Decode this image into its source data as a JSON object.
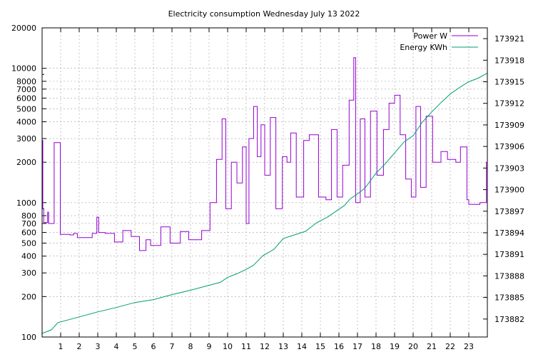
{
  "chart_data": {
    "type": "line",
    "title": "Electricity consumption Wednesday July 13 2022",
    "x": {
      "label": "",
      "range": [
        0,
        24
      ],
      "ticks": [
        1,
        2,
        3,
        4,
        5,
        6,
        7,
        8,
        9,
        10,
        11,
        12,
        13,
        14,
        15,
        16,
        17,
        18,
        19,
        20,
        21,
        22,
        23
      ]
    },
    "y_left": {
      "label": "",
      "scale": "log",
      "range": [
        100,
        20000
      ],
      "ticks": [
        100,
        200,
        300,
        400,
        500,
        600,
        700,
        800,
        1000,
        2000,
        3000,
        4000,
        5000,
        6000,
        7000,
        8000,
        10000,
        20000
      ]
    },
    "y_right": {
      "label": "",
      "scale": "linear",
      "range": [
        173879.5,
        173922.5
      ],
      "ticks": [
        173882,
        173885,
        173888,
        173891,
        173894,
        173897,
        173900,
        173903,
        173906,
        173909,
        173912,
        173915,
        173918,
        173921
      ]
    },
    "grid": true,
    "legend": "top-right",
    "series": [
      {
        "name": "Power W",
        "axis": "left",
        "color": "#9400d3",
        "style": "steps",
        "points": [
          [
            0.0,
            2900
          ],
          [
            0.04,
            900
          ],
          [
            0.09,
            710
          ],
          [
            0.3,
            850
          ],
          [
            0.35,
            700
          ],
          [
            0.65,
            2800
          ],
          [
            0.95,
            2800
          ],
          [
            0.98,
            580
          ],
          [
            1.5,
            575
          ],
          [
            1.7,
            590
          ],
          [
            1.9,
            550
          ],
          [
            2.7,
            590
          ],
          [
            2.95,
            780
          ],
          [
            3.05,
            600
          ],
          [
            3.4,
            590
          ],
          [
            3.9,
            510
          ],
          [
            4.35,
            620
          ],
          [
            4.8,
            560
          ],
          [
            5.25,
            440
          ],
          [
            5.6,
            530
          ],
          [
            5.85,
            480
          ],
          [
            6.4,
            660
          ],
          [
            6.9,
            500
          ],
          [
            7.45,
            610
          ],
          [
            7.9,
            530
          ],
          [
            8.6,
            620
          ],
          [
            9.05,
            1000
          ],
          [
            9.4,
            2100
          ],
          [
            9.7,
            4200
          ],
          [
            9.9,
            900
          ],
          [
            10.2,
            2000
          ],
          [
            10.5,
            1400
          ],
          [
            10.8,
            2600
          ],
          [
            11.0,
            700
          ],
          [
            11.15,
            3000
          ],
          [
            11.4,
            5200
          ],
          [
            11.6,
            2200
          ],
          [
            11.8,
            3800
          ],
          [
            12.0,
            1600
          ],
          [
            12.3,
            4300
          ],
          [
            12.6,
            900
          ],
          [
            12.95,
            2200
          ],
          [
            13.2,
            2000
          ],
          [
            13.4,
            3300
          ],
          [
            13.7,
            1100
          ],
          [
            14.1,
            2900
          ],
          [
            14.4,
            3200
          ],
          [
            14.9,
            1100
          ],
          [
            15.3,
            1050
          ],
          [
            15.6,
            3500
          ],
          [
            15.9,
            1100
          ],
          [
            16.2,
            1900
          ],
          [
            16.55,
            5800
          ],
          [
            16.8,
            12000
          ],
          [
            16.9,
            1000
          ],
          [
            17.15,
            4200
          ],
          [
            17.4,
            1100
          ],
          [
            17.7,
            4800
          ],
          [
            18.05,
            1600
          ],
          [
            18.4,
            3500
          ],
          [
            18.7,
            5500
          ],
          [
            19.0,
            6300
          ],
          [
            19.3,
            3200
          ],
          [
            19.6,
            1500
          ],
          [
            19.9,
            1100
          ],
          [
            20.15,
            5200
          ],
          [
            20.4,
            1300
          ],
          [
            20.7,
            4400
          ],
          [
            21.05,
            2000
          ],
          [
            21.5,
            2400
          ],
          [
            21.85,
            2100
          ],
          [
            22.3,
            2000
          ],
          [
            22.55,
            2600
          ],
          [
            22.9,
            1050
          ],
          [
            23.0,
            970
          ],
          [
            23.6,
            1000
          ],
          [
            23.95,
            2000
          ]
        ]
      },
      {
        "name": "Energy KWh",
        "axis": "right",
        "color": "#009e73",
        "style": "line",
        "points": [
          [
            0.0,
            173880.0
          ],
          [
            0.5,
            173880.5
          ],
          [
            0.85,
            173881.5
          ],
          [
            2.0,
            173882.3
          ],
          [
            3.0,
            173883.0
          ],
          [
            4.0,
            173883.6
          ],
          [
            5.0,
            173884.3
          ],
          [
            6.0,
            173884.7
          ],
          [
            7.0,
            173885.4
          ],
          [
            8.0,
            173886.0
          ],
          [
            9.0,
            173886.7
          ],
          [
            9.6,
            173887.1
          ],
          [
            10.0,
            173887.8
          ],
          [
            10.5,
            173888.3
          ],
          [
            11.0,
            173888.9
          ],
          [
            11.4,
            173889.5
          ],
          [
            11.9,
            173890.8
          ],
          [
            12.5,
            173891.7
          ],
          [
            13.0,
            173893.2
          ],
          [
            13.6,
            173893.7
          ],
          [
            14.2,
            173894.2
          ],
          [
            14.8,
            173895.4
          ],
          [
            15.4,
            173896.2
          ],
          [
            15.9,
            173897.1
          ],
          [
            16.3,
            173897.8
          ],
          [
            16.6,
            173898.7
          ],
          [
            17.0,
            173899.4
          ],
          [
            17.4,
            173900.2
          ],
          [
            18.0,
            173902.3
          ],
          [
            18.5,
            173903.6
          ],
          [
            19.0,
            173905.1
          ],
          [
            19.5,
            173906.6
          ],
          [
            20.0,
            173907.5
          ],
          [
            20.5,
            173909.4
          ],
          [
            21.0,
            173910.8
          ],
          [
            21.5,
            173912.1
          ],
          [
            22.0,
            173913.3
          ],
          [
            22.5,
            173914.2
          ],
          [
            23.0,
            173915.0
          ],
          [
            23.5,
            173915.5
          ],
          [
            24.0,
            173916.2
          ]
        ]
      }
    ]
  }
}
